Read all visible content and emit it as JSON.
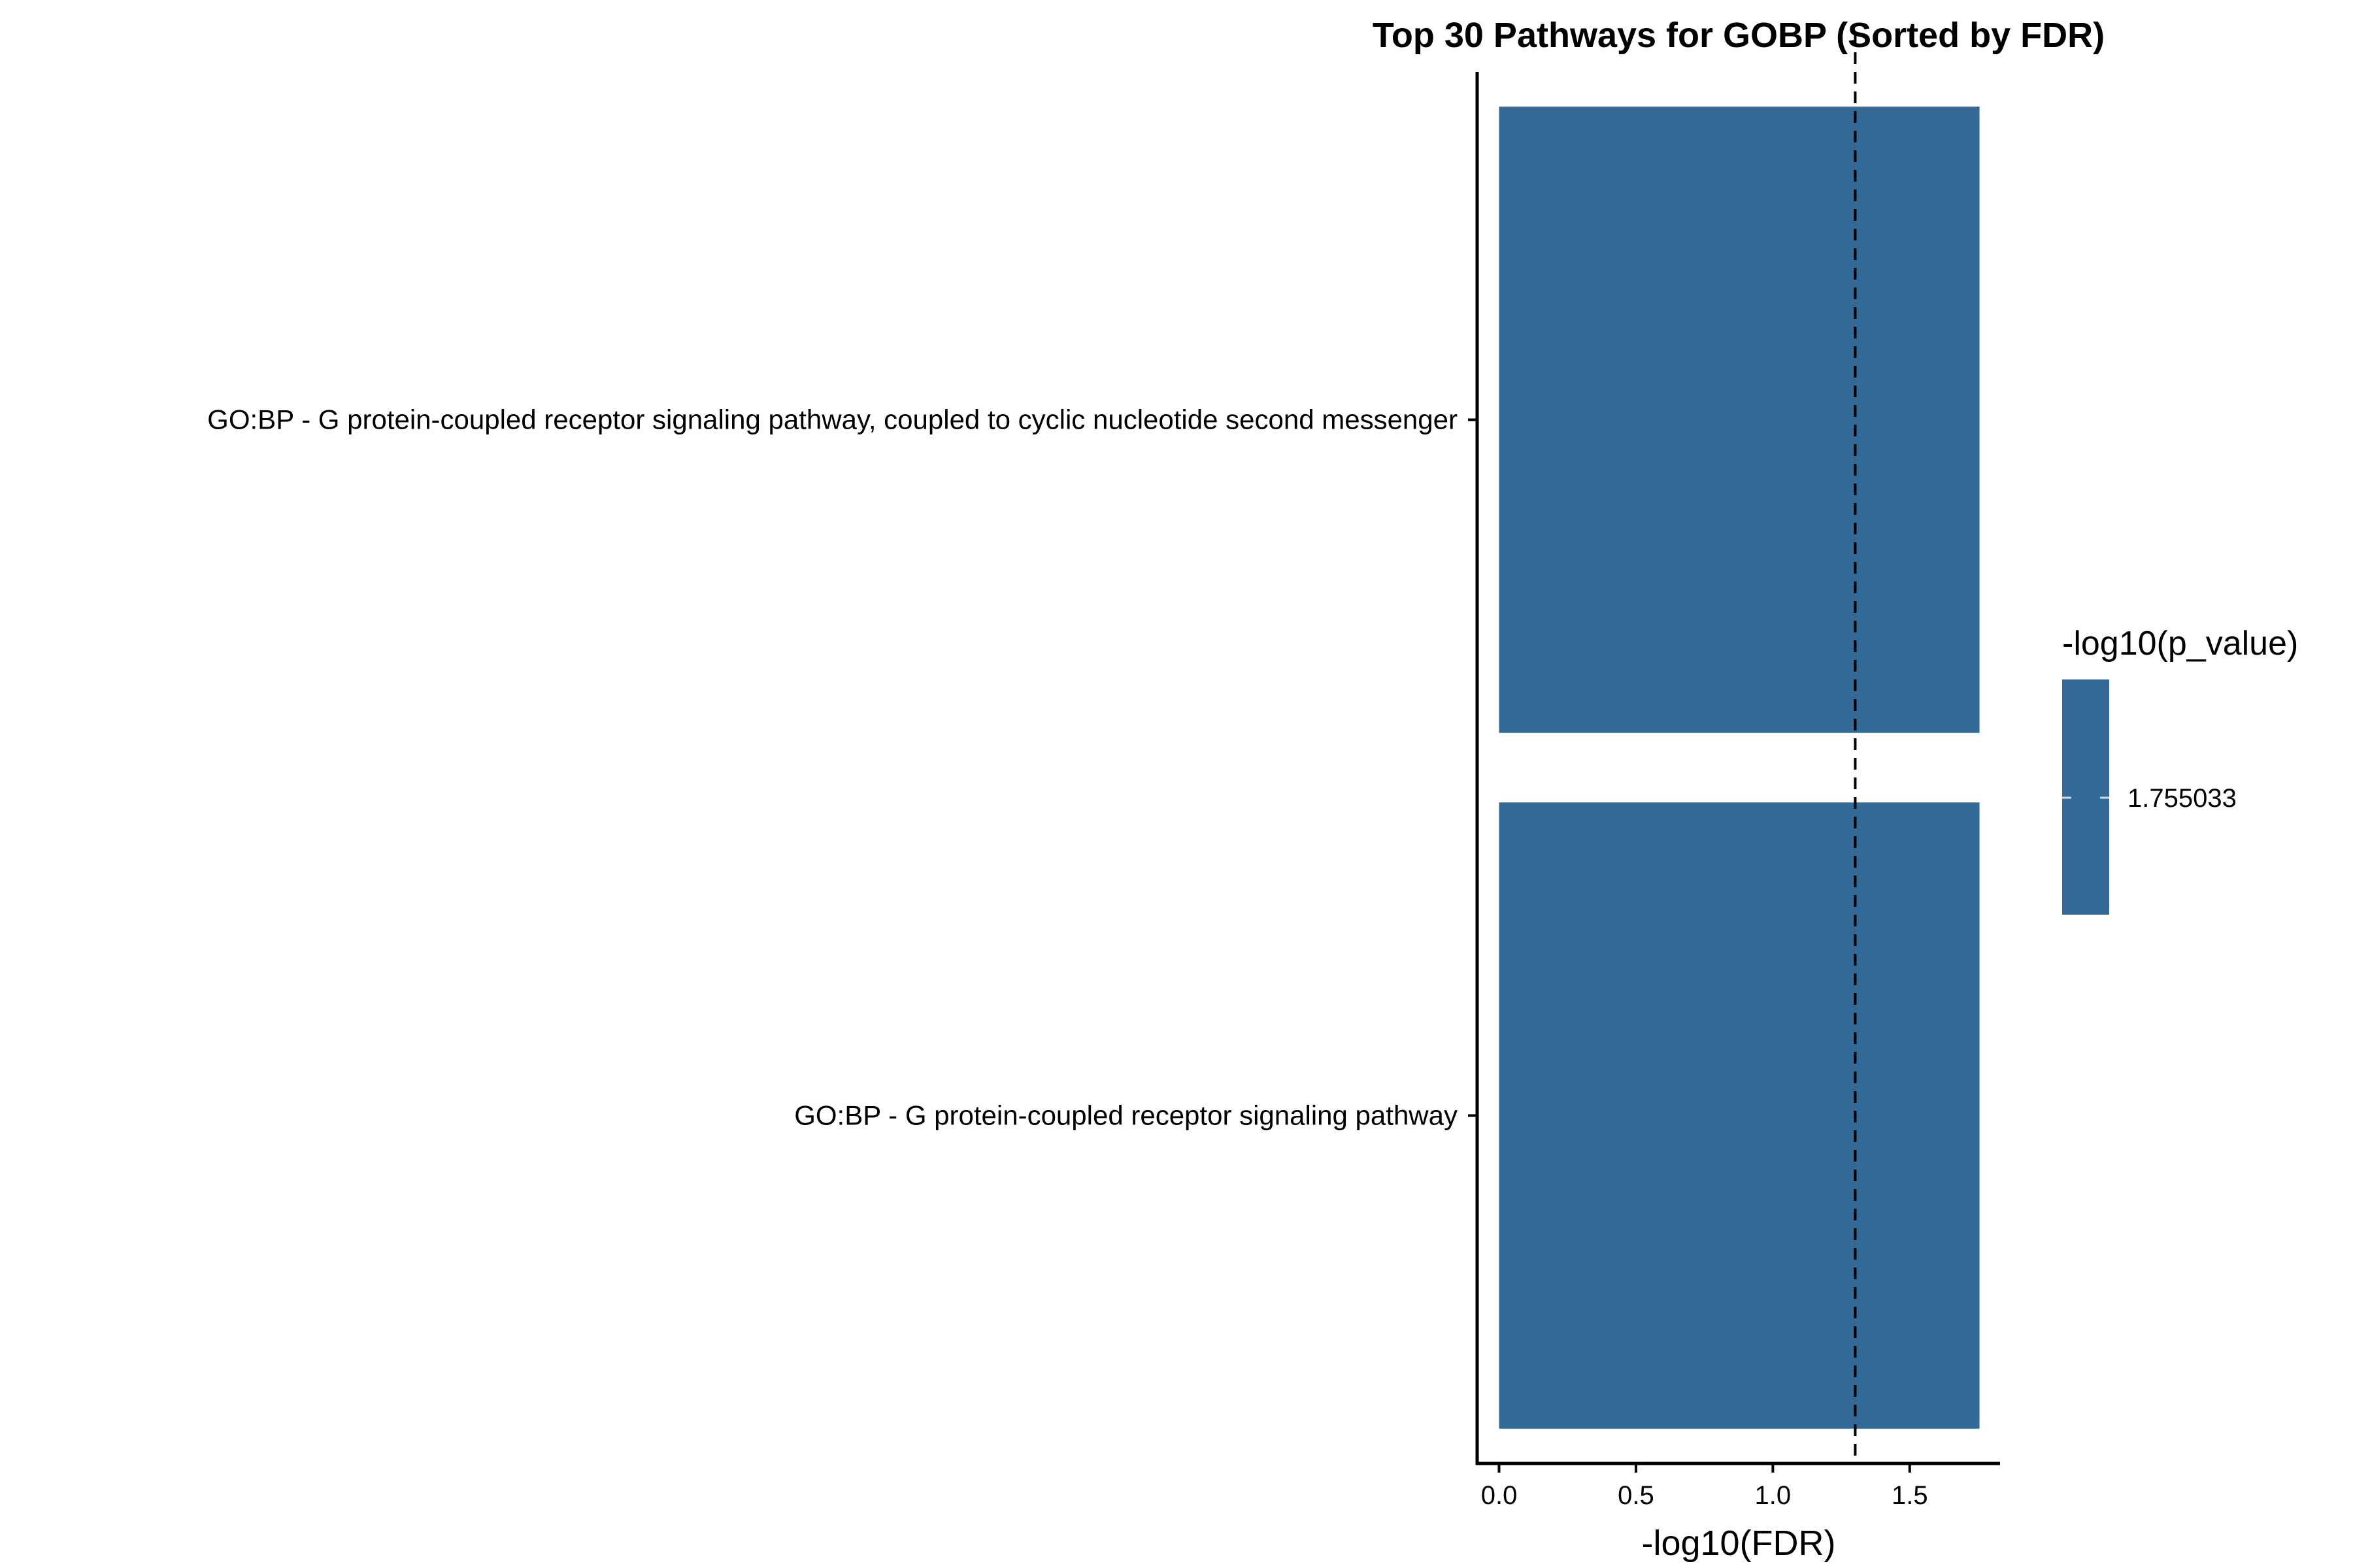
{
  "chart_data": {
    "type": "bar",
    "orientation": "horizontal",
    "title": "Top 30 Pathways for GOBP (Sorted by FDR)",
    "xlabel": "-log10(FDR)",
    "ylabel": "",
    "categories": [
      "GO:BP - G protein-coupled receptor signaling pathway, coupled to cyclic nucleotide second messenger",
      "GO:BP - G protein-coupled receptor signaling pathway"
    ],
    "values": [
      1.755,
      1.755
    ],
    "xlim": [
      -0.08,
      1.83
    ],
    "xticks": [
      0.0,
      0.5,
      1.0,
      1.5
    ],
    "xtick_labels": [
      "0.0",
      "0.5",
      "1.0",
      "1.5"
    ],
    "reference_line": {
      "x": 1.301,
      "style": "dashed"
    },
    "bar_color": "#336a98",
    "grid": false,
    "legend": {
      "title": "-log10(p_value)",
      "label": "1.755033",
      "color": "#336a98",
      "placement": "right"
    }
  }
}
